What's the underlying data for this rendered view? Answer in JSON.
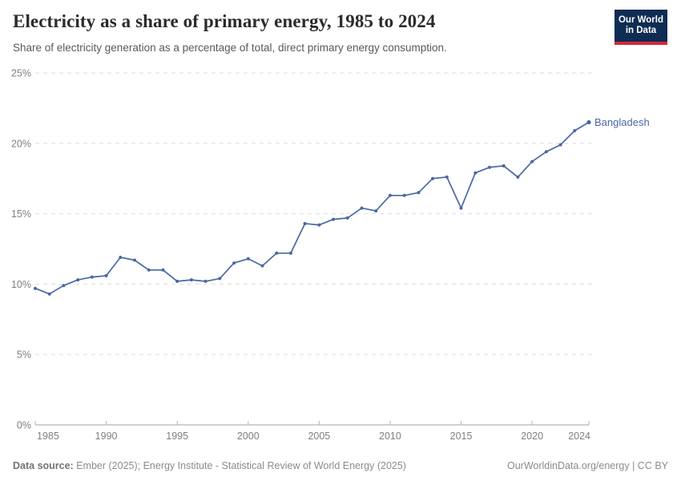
{
  "header": {
    "title": "Electricity as a share of primary energy, 1985 to 2024",
    "subtitle": "Share of electricity generation as a percentage of total, direct primary energy consumption."
  },
  "logo": {
    "line1": "Our World",
    "line2": "in Data",
    "bg_color": "#0f2d52",
    "accent_color": "#d62839"
  },
  "chart_data": {
    "type": "line",
    "title": "Electricity as a share of primary energy, 1985 to 2024",
    "xlabel": "",
    "ylabel": "",
    "xlim": [
      1985,
      2024
    ],
    "ylim": [
      0,
      25
    ],
    "grid": "horizontal-dashed",
    "legend_position": "end-of-line",
    "y_ticks": [
      0,
      5,
      10,
      15,
      20,
      25
    ],
    "y_tick_suffix": "%",
    "x_ticks": [
      1985,
      1990,
      1995,
      2000,
      2005,
      2010,
      2015,
      2020,
      2024
    ],
    "series": [
      {
        "name": "Bangladesh",
        "color": "#4a68a2",
        "x": [
          1985,
          1986,
          1987,
          1988,
          1989,
          1990,
          1991,
          1992,
          1993,
          1994,
          1995,
          1996,
          1997,
          1998,
          1999,
          2000,
          2001,
          2002,
          2003,
          2004,
          2005,
          2006,
          2007,
          2008,
          2009,
          2010,
          2011,
          2012,
          2013,
          2014,
          2015,
          2016,
          2017,
          2018,
          2019,
          2020,
          2021,
          2022,
          2023,
          2024
        ],
        "values": [
          9.7,
          9.3,
          9.9,
          10.3,
          10.5,
          10.6,
          11.9,
          11.7,
          11.0,
          11.0,
          10.2,
          10.3,
          10.2,
          10.4,
          11.5,
          11.8,
          11.3,
          12.2,
          12.2,
          14.3,
          14.2,
          14.6,
          14.7,
          15.4,
          15.2,
          16.3,
          16.3,
          16.5,
          17.5,
          17.6,
          15.4,
          17.9,
          18.3,
          18.4,
          17.6,
          18.7,
          19.4,
          19.9,
          20.9,
          21.5
        ]
      }
    ]
  },
  "footer": {
    "datasource_label": "Data source:",
    "datasource_text": " Ember (2025); Energy Institute - Statistical Review of World Energy (2025)",
    "link": "OurWorldinData.org/energy | CC BY"
  }
}
